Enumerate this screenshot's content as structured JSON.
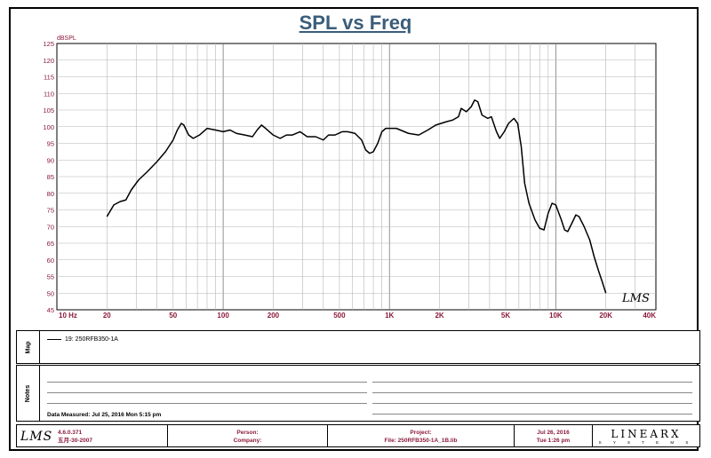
{
  "chart_data": {
    "type": "line",
    "title": "SPL vs Freq",
    "ylabel": "dBSPL",
    "xlabel": "",
    "x_scale": "log",
    "xlim": [
      10,
      40000
    ],
    "ylim": [
      45,
      125
    ],
    "grid": true,
    "y_ticks": [
      "45",
      "50",
      "55",
      "60",
      "65",
      "70",
      "75",
      "80",
      "85",
      "90",
      "95",
      "100",
      "105",
      "110",
      "115",
      "120",
      "125"
    ],
    "x_ticks": [
      {
        "value": 10,
        "label": "10  Hz"
      },
      {
        "value": 20,
        "label": "20"
      },
      {
        "value": 50,
        "label": "50"
      },
      {
        "value": 100,
        "label": "100"
      },
      {
        "value": 200,
        "label": "200"
      },
      {
        "value": 500,
        "label": "500"
      },
      {
        "value": 1000,
        "label": "1K"
      },
      {
        "value": 2000,
        "label": "2K"
      },
      {
        "value": 5000,
        "label": "5K"
      },
      {
        "value": 10000,
        "label": "10K"
      },
      {
        "value": 20000,
        "label": "20K"
      },
      {
        "value": 40000,
        "label": "40K"
      }
    ],
    "series": [
      {
        "name": "19: 250RFB350-1A",
        "color": "#000000",
        "points": [
          [
            20,
            73
          ],
          [
            22,
            76.5
          ],
          [
            24,
            77.5
          ],
          [
            26,
            78
          ],
          [
            28,
            81
          ],
          [
            31,
            84
          ],
          [
            35,
            86.5
          ],
          [
            40,
            89.5
          ],
          [
            45,
            92.5
          ],
          [
            50,
            96
          ],
          [
            53,
            99
          ],
          [
            56,
            101
          ],
          [
            58,
            100.5
          ],
          [
            62,
            97.5
          ],
          [
            66,
            96.5
          ],
          [
            72,
            97.5
          ],
          [
            80,
            99.5
          ],
          [
            90,
            99
          ],
          [
            100,
            98.5
          ],
          [
            110,
            99
          ],
          [
            120,
            98
          ],
          [
            135,
            97.5
          ],
          [
            150,
            97
          ],
          [
            160,
            99
          ],
          [
            170,
            100.5
          ],
          [
            180,
            99.5
          ],
          [
            200,
            97.5
          ],
          [
            220,
            96.5
          ],
          [
            240,
            97.5
          ],
          [
            260,
            97.5
          ],
          [
            290,
            98.5
          ],
          [
            320,
            97
          ],
          [
            360,
            97
          ],
          [
            400,
            96
          ],
          [
            430,
            97.5
          ],
          [
            470,
            97.5
          ],
          [
            520,
            98.5
          ],
          [
            560,
            98.5
          ],
          [
            620,
            98
          ],
          [
            680,
            96
          ],
          [
            720,
            93
          ],
          [
            760,
            92
          ],
          [
            800,
            92.5
          ],
          [
            850,
            95
          ],
          [
            900,
            98.5
          ],
          [
            950,
            99.5
          ],
          [
            1100,
            99.5
          ],
          [
            1300,
            98
          ],
          [
            1500,
            97.5
          ],
          [
            1700,
            99
          ],
          [
            1900,
            100.5
          ],
          [
            2200,
            101.5
          ],
          [
            2400,
            102
          ],
          [
            2600,
            103
          ],
          [
            2700,
            105.5
          ],
          [
            2900,
            104.5
          ],
          [
            3100,
            106
          ],
          [
            3250,
            108
          ],
          [
            3400,
            107.5
          ],
          [
            3600,
            103.5
          ],
          [
            3900,
            102.5
          ],
          [
            4100,
            103
          ],
          [
            4400,
            98.5
          ],
          [
            4600,
            96.5
          ],
          [
            4900,
            98.5
          ],
          [
            5200,
            101
          ],
          [
            5600,
            102.5
          ],
          [
            5900,
            101
          ],
          [
            6200,
            94
          ],
          [
            6500,
            83
          ],
          [
            6900,
            77
          ],
          [
            7500,
            72
          ],
          [
            8000,
            69.5
          ],
          [
            8500,
            69
          ],
          [
            9000,
            74
          ],
          [
            9500,
            77
          ],
          [
            10000,
            76.5
          ],
          [
            10800,
            72
          ],
          [
            11300,
            69
          ],
          [
            11800,
            68.5
          ],
          [
            12500,
            71
          ],
          [
            13200,
            73.5
          ],
          [
            13800,
            73
          ],
          [
            14800,
            70
          ],
          [
            16000,
            66
          ],
          [
            17000,
            61
          ],
          [
            18000,
            57
          ],
          [
            19000,
            53.5
          ],
          [
            20000,
            50
          ]
        ]
      }
    ],
    "watermark": "LMS"
  },
  "map_panel": {
    "tab_label": "Map",
    "legend_entry": "19: 250RFB350-1A"
  },
  "notes_panel": {
    "tab_label": "Notes",
    "measured_text": "Data Measured: Jul 25, 2016  Mon  5:15 pm"
  },
  "footer": {
    "logo_text": "LMS",
    "version": "4.6.0.371",
    "date_line": "五月-30-2007",
    "person_label": "Person:",
    "company_label": "Company:",
    "project_label": "Project:",
    "file_label": "File: 250RFB350-1A_1B.lib",
    "date": "Jul 26, 2016",
    "time": "Tue  1:26 pm",
    "brand": "LINEARX",
    "brand_sub": "S Y S T E M S"
  }
}
